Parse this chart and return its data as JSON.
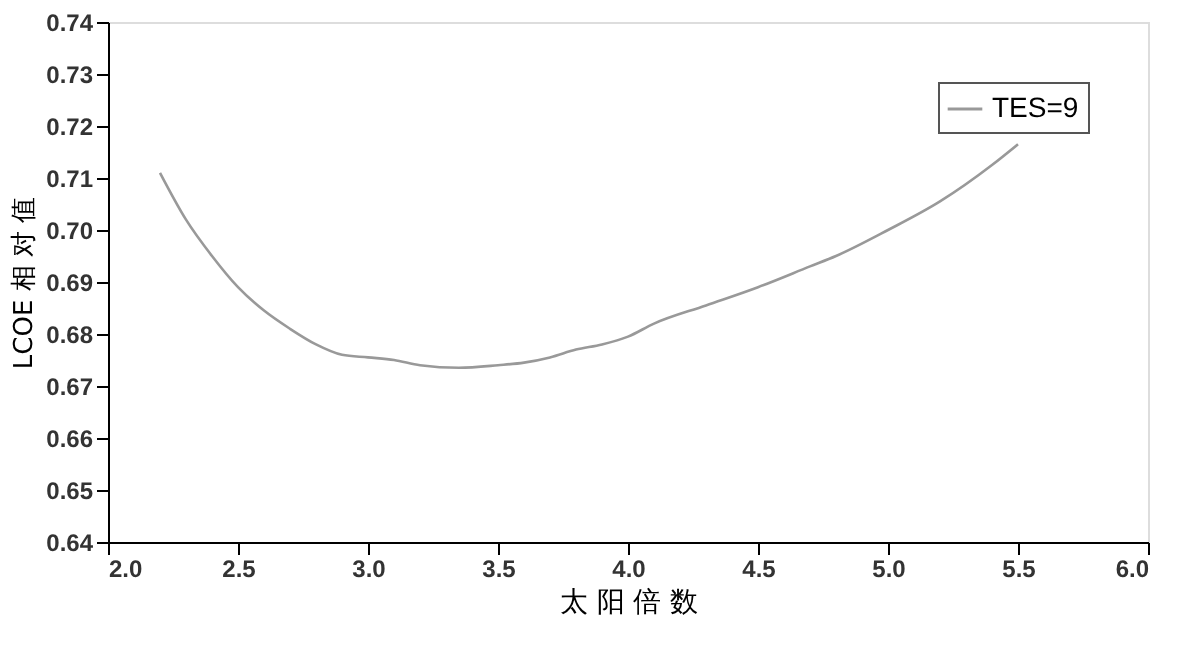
{
  "chart_data": {
    "type": "line",
    "xlabel": "太 阳 倍 数",
    "ylabel": "LCOE 相 对 值",
    "x": [
      2.2,
      2.3,
      2.4,
      2.5,
      2.6,
      2.7,
      2.8,
      2.9,
      3.0,
      3.1,
      3.2,
      3.35,
      3.5,
      3.6,
      3.7,
      3.8,
      3.9,
      4.0,
      4.1,
      4.3,
      4.5,
      4.7,
      4.8,
      5.0,
      5.2,
      5.4,
      5.5
    ],
    "series": [
      {
        "name": "TES=9",
        "color": "#999999",
        "values": [
          0.711,
          0.702,
          0.695,
          0.689,
          0.6845,
          0.681,
          0.678,
          0.676,
          0.6755,
          0.675,
          0.674,
          0.6735,
          0.674,
          0.6745,
          0.6755,
          0.677,
          0.678,
          0.6795,
          0.682,
          0.6855,
          0.689,
          0.693,
          0.695,
          0.7,
          0.7055,
          0.7125,
          0.7165
        ]
      }
    ],
    "xlim": [
      2.0,
      6.0
    ],
    "xticks": [
      {
        "value": 2.0,
        "label": "2.0"
      },
      {
        "value": 2.5,
        "label": "2.5"
      },
      {
        "value": 3.0,
        "label": "3.0"
      },
      {
        "value": 3.5,
        "label": "3.5"
      },
      {
        "value": 4.0,
        "label": "4.0"
      },
      {
        "value": 4.5,
        "label": "4.5"
      },
      {
        "value": 5.0,
        "label": "5.0"
      },
      {
        "value": 5.5,
        "label": "5.5"
      },
      {
        "value": 6.0,
        "label": "6.0"
      }
    ],
    "ylim": [
      0.64,
      0.74
    ],
    "yticks": [
      {
        "value": 0.64,
        "label": "0.64"
      },
      {
        "value": 0.65,
        "label": "0.65"
      },
      {
        "value": 0.66,
        "label": "0.66"
      },
      {
        "value": 0.67,
        "label": "0.67"
      },
      {
        "value": 0.68,
        "label": "0.68"
      },
      {
        "value": 0.69,
        "label": "0.69"
      },
      {
        "value": 0.7,
        "label": "0.70"
      },
      {
        "value": 0.71,
        "label": "0.71"
      },
      {
        "value": 0.72,
        "label": "0.72"
      },
      {
        "value": 0.73,
        "label": "0.73"
      },
      {
        "value": 0.74,
        "label": "0.74"
      }
    ],
    "grid": false,
    "legend": "top right",
    "marker": "none",
    "line_style": "solid"
  }
}
